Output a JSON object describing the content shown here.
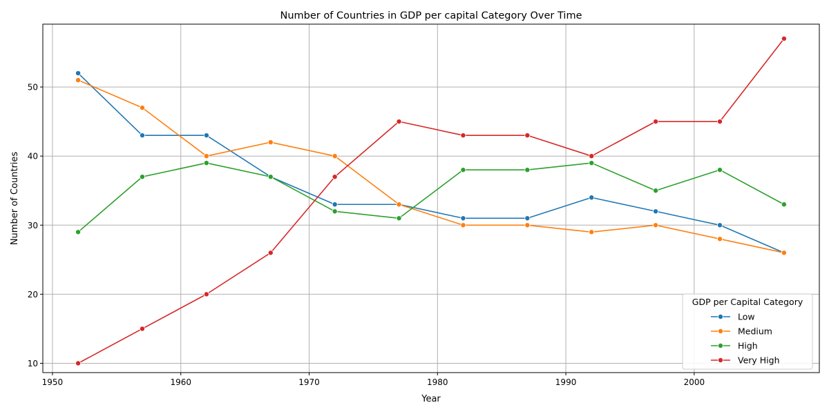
{
  "chart_data": {
    "type": "line",
    "title": "Number of Countries in GDP per capital Category Over Time",
    "xlabel": "Year",
    "ylabel": "Number of Countries",
    "xlim": [
      1949.25,
      2009.75
    ],
    "ylim": [
      8.65,
      59.1
    ],
    "xticks": [
      1950,
      1960,
      1970,
      1980,
      1990,
      2000
    ],
    "yticks": [
      10,
      20,
      30,
      40,
      50
    ],
    "grid": true,
    "legend_title": "GDP per Capital Category",
    "legend_position": "lower-right",
    "x": [
      1952,
      1957,
      1962,
      1967,
      1972,
      1977,
      1982,
      1987,
      1992,
      1997,
      2002,
      2007
    ],
    "series": [
      {
        "name": "Low",
        "color": "#1f77b4",
        "values": [
          52,
          43,
          43,
          37,
          33,
          33,
          31,
          31,
          34,
          32,
          30,
          26
        ]
      },
      {
        "name": "Medium",
        "color": "#ff7f0e",
        "values": [
          51,
          47,
          40,
          42,
          40,
          33,
          30,
          30,
          29,
          30,
          28,
          26
        ]
      },
      {
        "name": "High",
        "color": "#2ca02c",
        "values": [
          29,
          37,
          39,
          37,
          32,
          31,
          38,
          38,
          39,
          35,
          38,
          33
        ]
      },
      {
        "name": "Very High",
        "color": "#d62728",
        "values": [
          10,
          15,
          20,
          26,
          37,
          45,
          43,
          43,
          40,
          45,
          45,
          57
        ]
      }
    ]
  }
}
